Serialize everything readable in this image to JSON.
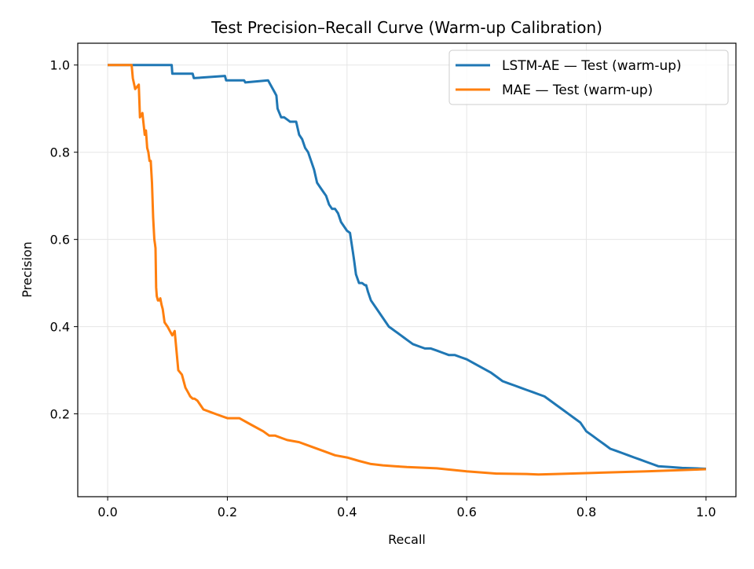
{
  "chart_data": {
    "type": "line",
    "title": "Test Precision–Recall Curve (Warm-up Calibration)",
    "xlabel": "Recall",
    "ylabel": "Precision",
    "xlim": [
      -0.05,
      1.05
    ],
    "ylim": [
      0.01,
      1.05
    ],
    "xticks": [
      "0.0",
      "0.2",
      "0.4",
      "0.6",
      "0.8",
      "1.0"
    ],
    "yticks": [
      "0.2",
      "0.4",
      "0.6",
      "0.8",
      "1.0"
    ],
    "grid": true,
    "legend_position": "upper right",
    "series": [
      {
        "name": "LSTM-AE — Test (warm-up)",
        "color": "#1f77b4",
        "x": [
          0.0,
          0.107,
          0.108,
          0.142,
          0.144,
          0.196,
          0.198,
          0.228,
          0.23,
          0.268,
          0.272,
          0.278,
          0.282,
          0.284,
          0.29,
          0.295,
          0.3,
          0.305,
          0.315,
          0.32,
          0.325,
          0.33,
          0.335,
          0.34,
          0.345,
          0.35,
          0.355,
          0.36,
          0.365,
          0.37,
          0.375,
          0.38,
          0.385,
          0.39,
          0.4,
          0.405,
          0.41,
          0.412,
          0.415,
          0.42,
          0.425,
          0.43,
          0.432,
          0.435,
          0.44,
          0.45,
          0.46,
          0.47,
          0.475,
          0.48,
          0.485,
          0.49,
          0.495,
          0.5,
          0.51,
          0.52,
          0.53,
          0.54,
          0.55,
          0.56,
          0.57,
          0.58,
          0.59,
          0.6,
          0.62,
          0.64,
          0.65,
          0.66,
          0.67,
          0.68,
          0.69,
          0.7,
          0.71,
          0.72,
          0.73,
          0.74,
          0.75,
          0.76,
          0.77,
          0.78,
          0.79,
          0.8,
          0.81,
          0.82,
          0.83,
          0.84,
          0.85,
          0.86,
          0.87,
          0.88,
          0.89,
          0.9,
          0.91,
          0.92,
          0.94,
          0.96,
          0.98,
          1.0
        ],
        "y": [
          1.0,
          1.0,
          0.98,
          0.98,
          0.97,
          0.975,
          0.965,
          0.965,
          0.96,
          0.965,
          0.955,
          0.94,
          0.93,
          0.9,
          0.88,
          0.88,
          0.875,
          0.87,
          0.87,
          0.84,
          0.83,
          0.81,
          0.8,
          0.78,
          0.76,
          0.73,
          0.72,
          0.71,
          0.7,
          0.68,
          0.67,
          0.67,
          0.66,
          0.64,
          0.62,
          0.615,
          0.57,
          0.55,
          0.52,
          0.5,
          0.5,
          0.495,
          0.495,
          0.48,
          0.46,
          0.44,
          0.42,
          0.4,
          0.395,
          0.39,
          0.385,
          0.38,
          0.375,
          0.37,
          0.36,
          0.355,
          0.35,
          0.35,
          0.345,
          0.34,
          0.335,
          0.335,
          0.33,
          0.325,
          0.31,
          0.295,
          0.285,
          0.275,
          0.27,
          0.265,
          0.26,
          0.255,
          0.25,
          0.245,
          0.24,
          0.23,
          0.22,
          0.21,
          0.2,
          0.19,
          0.18,
          0.16,
          0.15,
          0.14,
          0.13,
          0.12,
          0.115,
          0.11,
          0.105,
          0.1,
          0.095,
          0.09,
          0.085,
          0.08,
          0.078,
          0.076,
          0.075,
          0.074
        ]
      },
      {
        "name": "MAE — Test (warm-up)",
        "color": "#ff7f0e",
        "x": [
          0.0,
          0.04,
          0.042,
          0.046,
          0.052,
          0.054,
          0.058,
          0.062,
          0.064,
          0.066,
          0.068,
          0.07,
          0.072,
          0.074,
          0.076,
          0.078,
          0.079,
          0.08,
          0.081,
          0.082,
          0.084,
          0.086,
          0.088,
          0.09,
          0.092,
          0.095,
          0.1,
          0.104,
          0.106,
          0.108,
          0.112,
          0.118,
          0.124,
          0.126,
          0.128,
          0.13,
          0.134,
          0.138,
          0.142,
          0.145,
          0.15,
          0.16,
          0.17,
          0.18,
          0.19,
          0.2,
          0.22,
          0.24,
          0.26,
          0.27,
          0.28,
          0.29,
          0.3,
          0.32,
          0.34,
          0.36,
          0.38,
          0.4,
          0.42,
          0.44,
          0.46,
          0.48,
          0.5,
          0.55,
          0.6,
          0.65,
          0.7,
          0.72,
          0.75,
          0.8,
          0.9,
          1.0
        ],
        "y": [
          1.0,
          1.0,
          0.97,
          0.945,
          0.955,
          0.88,
          0.89,
          0.84,
          0.85,
          0.81,
          0.8,
          0.78,
          0.78,
          0.73,
          0.65,
          0.6,
          0.59,
          0.58,
          0.49,
          0.47,
          0.46,
          0.46,
          0.465,
          0.45,
          0.44,
          0.41,
          0.4,
          0.39,
          0.385,
          0.38,
          0.39,
          0.3,
          0.29,
          0.28,
          0.27,
          0.26,
          0.25,
          0.24,
          0.235,
          0.235,
          0.23,
          0.21,
          0.205,
          0.2,
          0.195,
          0.19,
          0.19,
          0.175,
          0.16,
          0.15,
          0.15,
          0.145,
          0.14,
          0.135,
          0.125,
          0.115,
          0.105,
          0.1,
          0.092,
          0.085,
          0.082,
          0.08,
          0.078,
          0.075,
          0.068,
          0.063,
          0.062,
          0.061,
          0.062,
          0.064,
          0.068,
          0.073
        ]
      }
    ]
  }
}
